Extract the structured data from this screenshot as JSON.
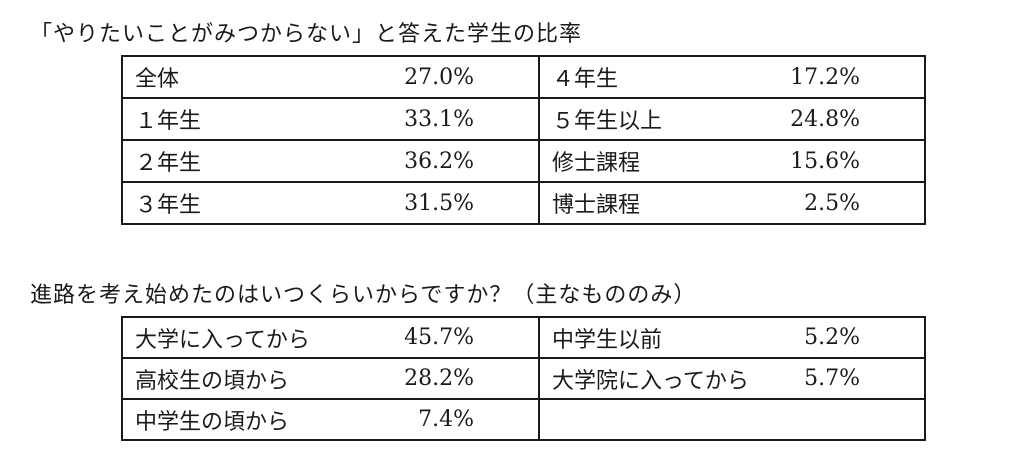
{
  "section1": {
    "title": "「やりたいことがみつからない」と答えた学生の比率",
    "rows": [
      {
        "left_label": "全体",
        "left_value": "27.0%",
        "right_label": "４年生",
        "right_value": "17.2%"
      },
      {
        "left_label": "１年生",
        "left_value": "33.1%",
        "right_label": "５年生以上",
        "right_value": "24.8%"
      },
      {
        "left_label": "２年生",
        "left_value": "36.2%",
        "right_label": "修士課程",
        "right_value": "15.6%"
      },
      {
        "left_label": "３年生",
        "left_value": "31.5%",
        "right_label": "博士課程",
        "right_value": "2.5%"
      }
    ]
  },
  "section2": {
    "title": "進路を考え始めたのはいつくらいからですか？（主なもののみ）",
    "rows": [
      {
        "left_label": "大学に入ってから",
        "left_value": "45.7%",
        "right_label": "中学生以前",
        "right_value": "5.2%"
      },
      {
        "left_label": "高校生の頃から",
        "left_value": "28.2%",
        "right_label": "大学院に入ってから",
        "right_value": "5.7%"
      },
      {
        "left_label": "中学生の頃から",
        "left_value": "7.4%",
        "right_label": "",
        "right_value": ""
      }
    ]
  }
}
